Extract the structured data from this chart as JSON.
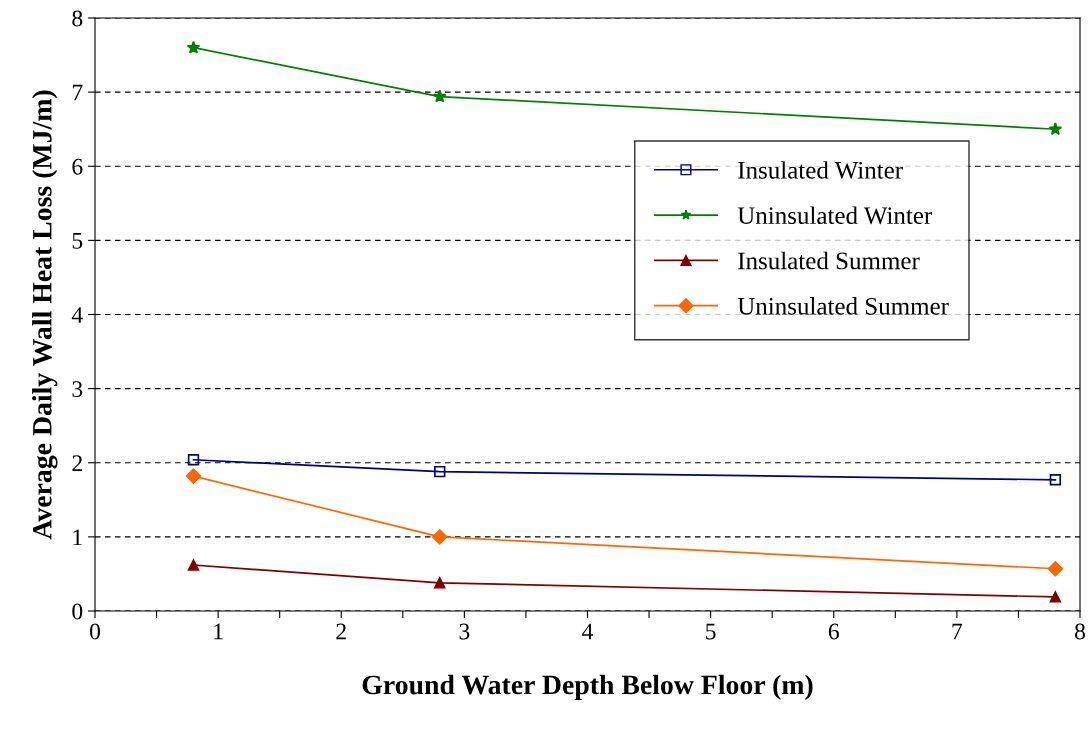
{
  "chart_data": {
    "type": "line",
    "xlabel": "Ground Water Depth Below Floor (m)",
    "ylabel": "Average Daily Wall Heat Loss (MJ/m)",
    "x": [
      0.8,
      2.8,
      7.8
    ],
    "series": [
      {
        "name": "Insulated Winter",
        "color": "#000080",
        "marker": "square",
        "values": [
          2.04,
          1.88,
          1.77
        ]
      },
      {
        "name": "Uninsulated Winter",
        "color": "#008000",
        "marker": "star",
        "values": [
          7.6,
          6.94,
          6.5
        ]
      },
      {
        "name": "Insulated Summer",
        "color": "#800000",
        "marker": "triangle",
        "values": [
          0.62,
          0.38,
          0.19
        ]
      },
      {
        "name": "Uninsulated Summer",
        "color": "#ff6600",
        "marker": "diamond",
        "values": [
          1.82,
          1.0,
          0.57
        ]
      }
    ],
    "xlim": [
      0,
      8
    ],
    "xticks": [
      0,
      {
        "value": 0.5,
        "label": null
      },
      1,
      {
        "value": 1.5,
        "label": null
      },
      2,
      {
        "value": 2.5,
        "label": null
      },
      3,
      {
        "value": 3.5,
        "label": null
      },
      4,
      {
        "value": 4.5,
        "label": null
      },
      5,
      {
        "value": 5.5,
        "label": null
      },
      6,
      {
        "value": 6.5,
        "label": null
      },
      7,
      {
        "value": 7.5,
        "label": null
      },
      8
    ],
    "ylim": [
      0,
      8
    ],
    "yticks": [
      0,
      1,
      2,
      3,
      4,
      5,
      6,
      7,
      8
    ],
    "grid": "y",
    "legend": "right",
    "line_style": "solid"
  }
}
